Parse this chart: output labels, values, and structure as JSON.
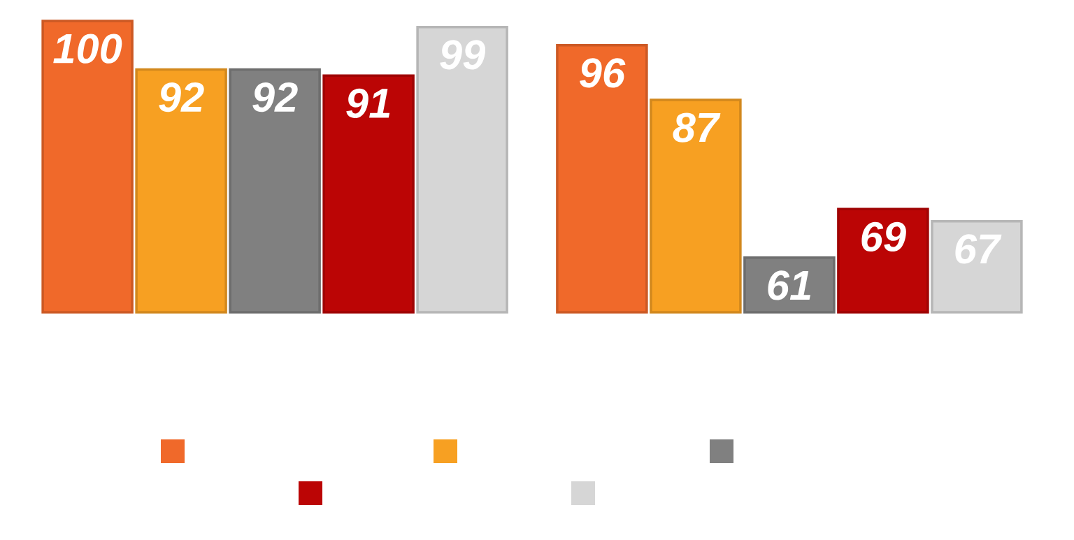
{
  "chart_data": {
    "type": "bar",
    "categories": [
      null,
      null
    ],
    "series": [
      {
        "color": "#f0692a",
        "values": [
          100,
          96
        ]
      },
      {
        "color": "#f7a022",
        "values": [
          92,
          87
        ]
      },
      {
        "color": "#808080",
        "values": [
          92,
          61
        ]
      },
      {
        "color": "#bb0505",
        "values": [
          91,
          69
        ]
      },
      {
        "color": "#d6d6d6",
        "values": [
          99,
          67
        ]
      }
    ],
    "ylim": [
      52,
      100
    ],
    "data_labels": true,
    "tick_labels": false
  }
}
